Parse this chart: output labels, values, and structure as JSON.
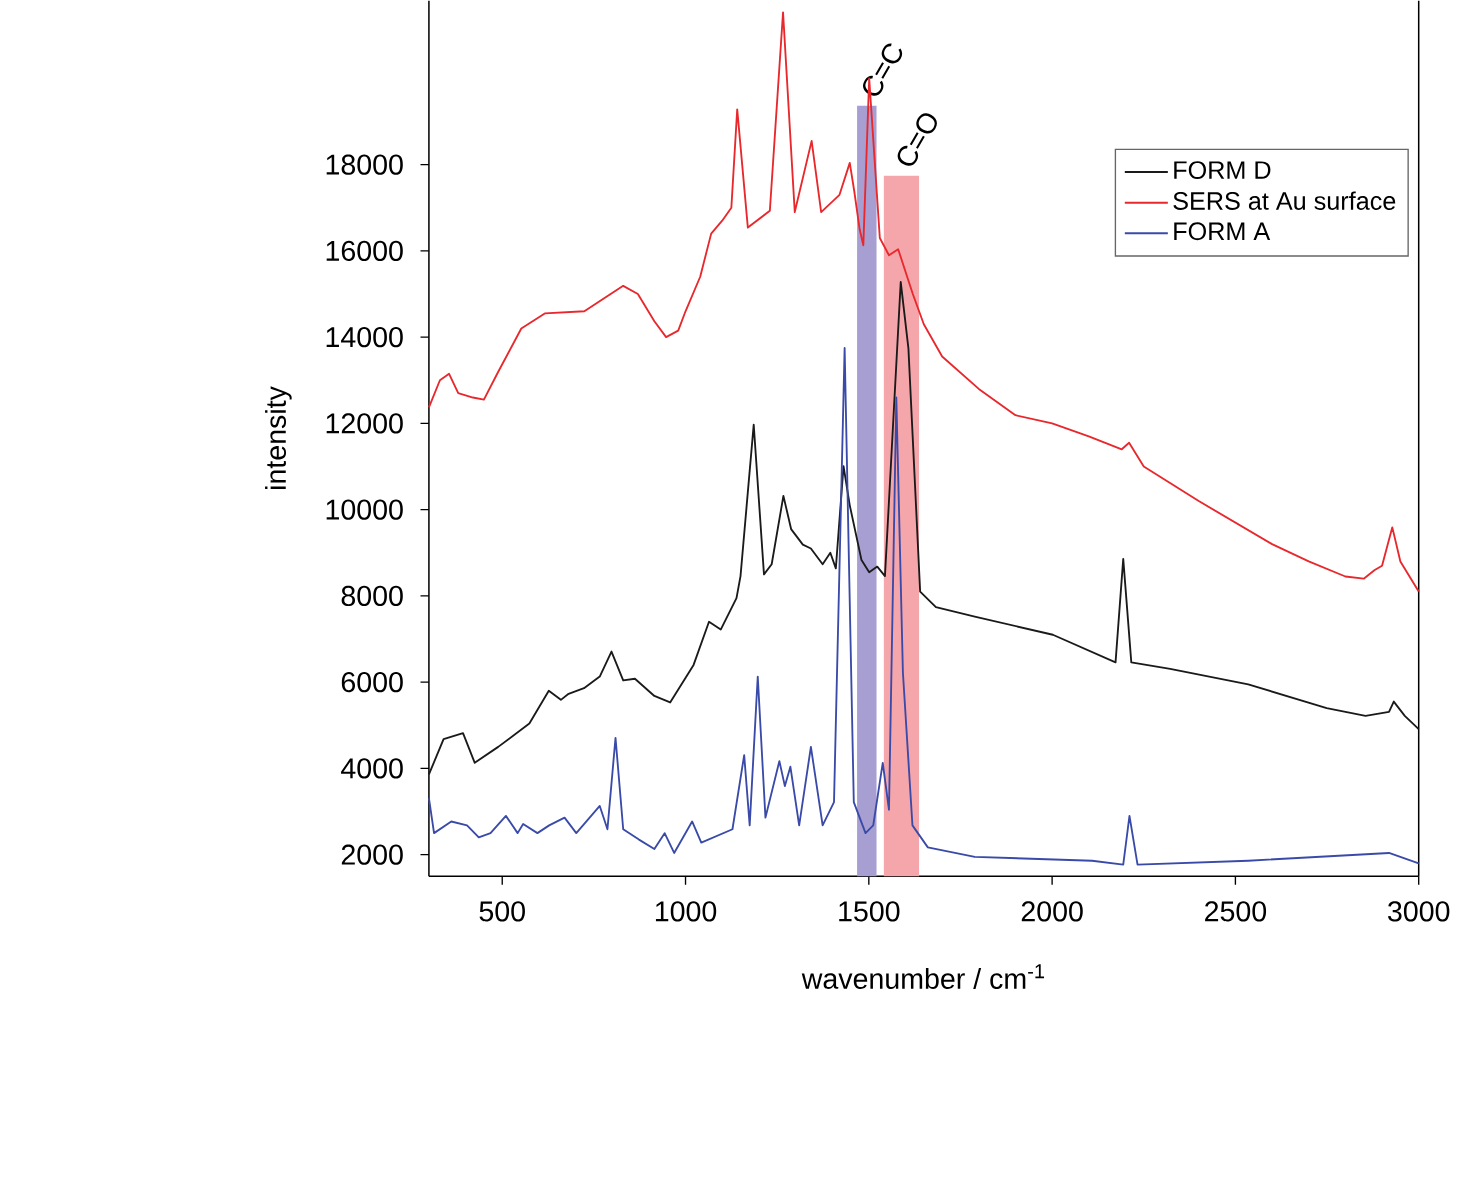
{
  "chart_data": {
    "type": "line",
    "xlabel": "wavenumber / cm$^{-1}$",
    "ylabel": "intensity",
    "xlim": [
      300,
      3000
    ],
    "ylim": [
      1500,
      21800
    ],
    "xticks": [
      500,
      1000,
      1500,
      2000,
      2500,
      3000
    ],
    "yticks": [
      2000,
      4000,
      6000,
      8000,
      10000,
      12000,
      14000,
      16000,
      18000
    ],
    "legend": "top right",
    "bands": [
      {
        "axis": "x",
        "from": 1468,
        "to": 1521,
        "label": "C=C",
        "color": "#a79ed2"
      },
      {
        "axis": "x",
        "from": 1541,
        "to": 1637,
        "label": "C=O",
        "color": "#f5a6aa"
      }
    ],
    "series": [
      {
        "name": "FORM D",
        "color": "#1a1a1a",
        "x": [
          300,
          340,
          393,
          425,
          489,
          574,
          627,
          660,
          681,
          723,
          766,
          798,
          830,
          862,
          915,
          958,
          1022,
          1064,
          1096,
          1139,
          1150,
          1186,
          1214,
          1235,
          1267,
          1288,
          1320,
          1342,
          1374,
          1395,
          1410,
          1431,
          1448,
          1480,
          1501,
          1523,
          1544,
          1587,
          1608,
          1640,
          1683,
          1789,
          2002,
          2173,
          2194,
          2216,
          2322,
          2535,
          2749,
          2855,
          2919,
          2932,
          2962,
          3000
        ],
        "values": [
          3860,
          4680,
          4820,
          4130,
          4500,
          5040,
          5800,
          5590,
          5730,
          5860,
          6130,
          6710,
          6040,
          6080,
          5680,
          5530,
          6400,
          7400,
          7220,
          7950,
          8460,
          11970,
          8500,
          8735,
          10320,
          9550,
          9190,
          9100,
          8735,
          9000,
          8640,
          11010,
          10100,
          8830,
          8550,
          8680,
          8460,
          15280,
          13740,
          8100,
          7740,
          7520,
          7100,
          6460,
          8860,
          6460,
          6310,
          5950,
          5400,
          5220,
          5310,
          5550,
          5220,
          4910
        ]
      },
      {
        "name": "SERS at Au surface",
        "color": "#e8282c",
        "x": [
          300,
          330,
          355,
          380,
          420,
          450,
          488,
          552,
          616,
          724,
          830,
          870,
          915,
          947,
          980,
          1000,
          1040,
          1070,
          1100,
          1125,
          1141,
          1170,
          1230,
          1266,
          1298,
          1344,
          1370,
          1420,
          1448,
          1460,
          1475,
          1485,
          1501,
          1530,
          1555,
          1580,
          1620,
          1650,
          1700,
          1800,
          1900,
          2000,
          2100,
          2190,
          2210,
          2250,
          2400,
          2500,
          2600,
          2700,
          2800,
          2850,
          2880,
          2900,
          2928,
          2950,
          3000
        ],
        "values": [
          12370,
          13000,
          13150,
          12700,
          12600,
          12550,
          13180,
          14200,
          14550,
          14600,
          15190,
          15000,
          14370,
          14000,
          14150,
          14600,
          15400,
          16400,
          16700,
          17000,
          19280,
          16540,
          16930,
          21530,
          16900,
          18550,
          16900,
          17300,
          18040,
          17400,
          16500,
          16130,
          20000,
          16300,
          15900,
          16040,
          15000,
          14300,
          13550,
          12800,
          12190,
          12000,
          11700,
          11400,
          11550,
          11000,
          10200,
          9700,
          9200,
          8800,
          8450,
          8400,
          8600,
          8700,
          9590,
          8800,
          8100
        ]
      },
      {
        "name": "FORM A",
        "color": "#3a4aa8",
        "x": [
          300,
          314,
          361,
          404,
          436,
          468,
          510,
          542,
          557,
          596,
          628,
          670,
          702,
          766,
          787,
          809,
          830,
          873,
          915,
          943,
          969,
          1018,
          1043,
          1128,
          1160,
          1175,
          1197,
          1218,
          1256,
          1271,
          1286,
          1310,
          1342,
          1374,
          1405,
          1434,
          1459,
          1491,
          1512,
          1538,
          1555,
          1575,
          1593,
          1619,
          1661,
          1789,
          2109,
          2194,
          2211,
          2233,
          2535,
          2919,
          3000
        ],
        "values": [
          3310,
          2500,
          2770,
          2680,
          2400,
          2500,
          2900,
          2500,
          2710,
          2500,
          2680,
          2860,
          2500,
          3130,
          2590,
          4710,
          2590,
          2350,
          2130,
          2500,
          2040,
          2770,
          2280,
          2590,
          4310,
          2680,
          6130,
          2860,
          4170,
          3590,
          4040,
          2680,
          4500,
          2680,
          3220,
          13750,
          3220,
          2500,
          2680,
          4130,
          3040,
          12600,
          6220,
          2680,
          2170,
          1950,
          1860,
          1770,
          2900,
          1770,
          1860,
          2040,
          1800
        ]
      }
    ]
  }
}
